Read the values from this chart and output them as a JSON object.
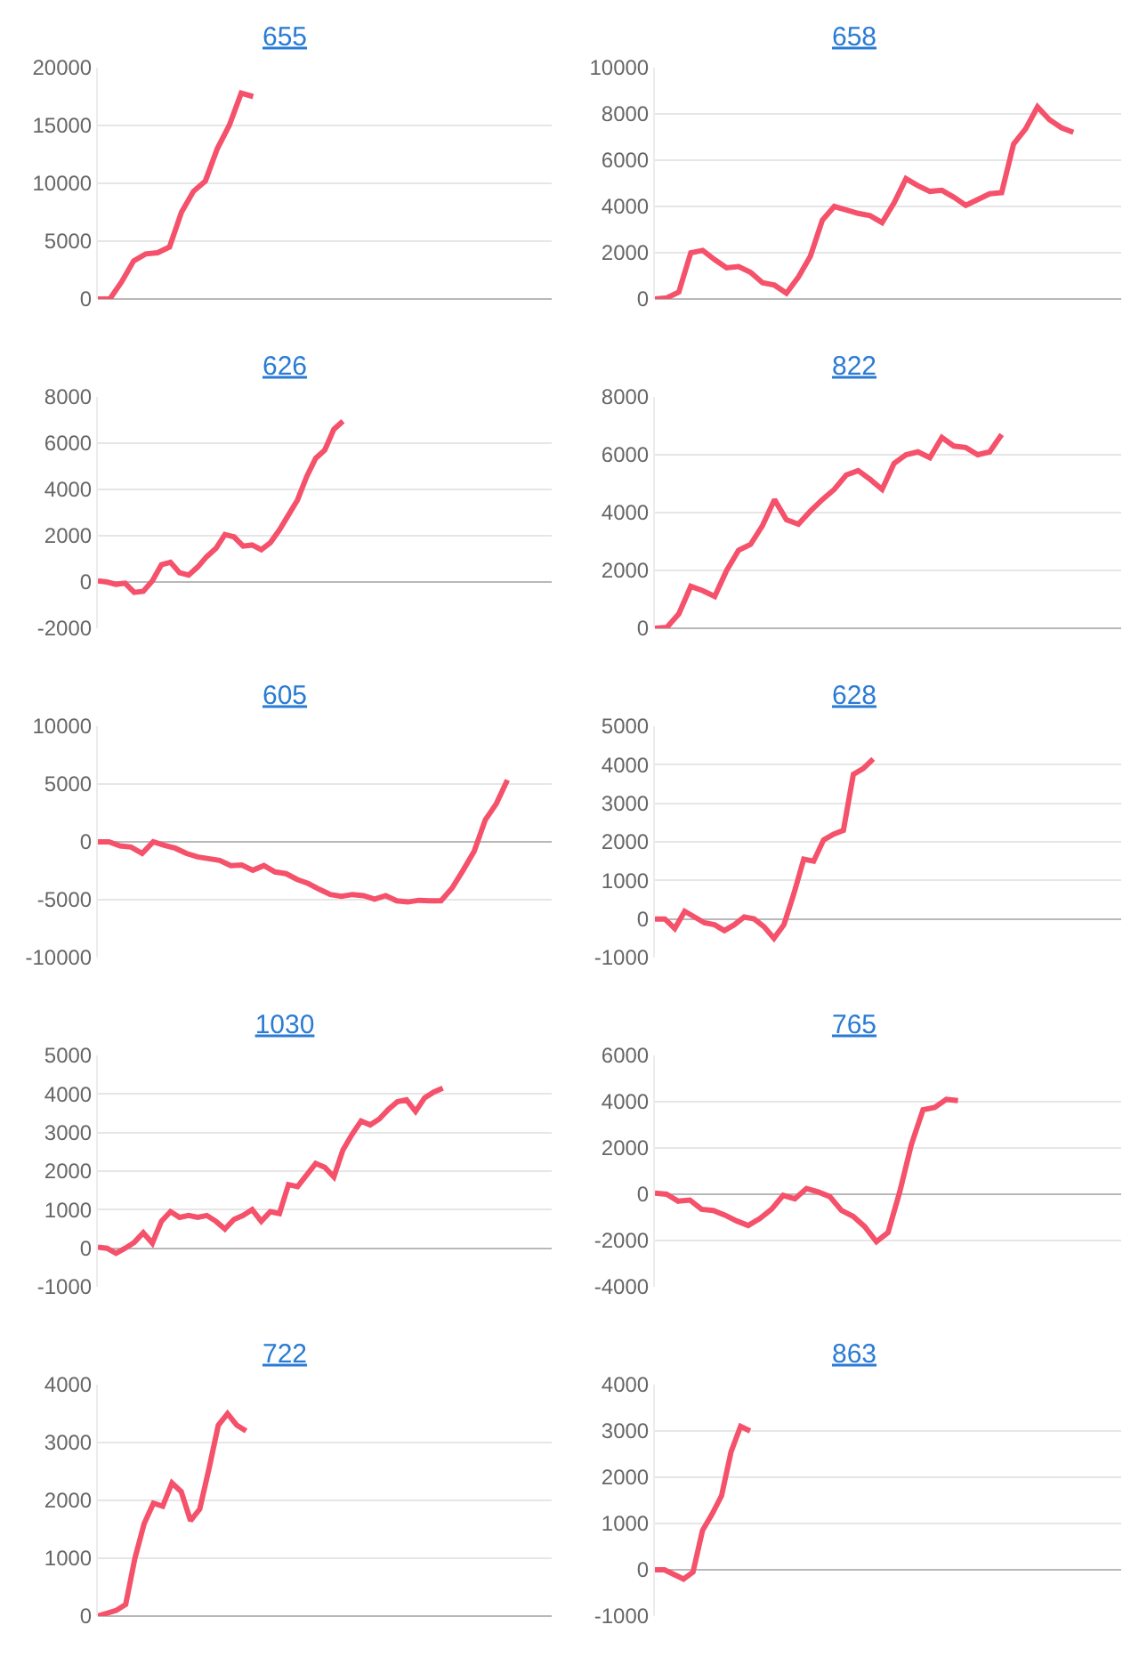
{
  "chart_data": [
    {
      "type": "line",
      "title": "655",
      "categories": [
        null,
        null,
        null,
        null,
        null,
        null,
        null,
        null,
        null,
        null,
        null,
        null,
        null,
        null,
        null,
        null,
        null,
        null,
        null,
        null,
        null,
        null,
        null,
        null,
        null,
        null,
        null,
        null,
        null,
        null,
        null,
        null,
        null,
        null,
        null,
        null,
        null,
        null,
        null
      ],
      "ylim": [
        0,
        20000
      ],
      "yticks": [
        0,
        5000,
        10000,
        15000,
        20000
      ],
      "grid": "y",
      "tick_labels": "y",
      "series": [
        {
          "color": "#f5516b",
          "values": [
            0,
            0,
            1500,
            3300,
            3900,
            4000,
            4500,
            7500,
            9300,
            10200,
            13000,
            15000,
            17800,
            17500,
            null,
            null,
            null,
            null,
            null,
            null,
            null,
            null,
            null,
            null,
            null,
            null,
            null,
            null,
            null,
            null,
            null,
            null,
            null,
            null,
            null,
            null,
            null,
            null,
            null
          ]
        }
      ]
    },
    {
      "type": "line",
      "title": "658",
      "categories": [
        null,
        null,
        null,
        null,
        null,
        null,
        null,
        null,
        null,
        null,
        null,
        null,
        null,
        null,
        null,
        null,
        null,
        null,
        null,
        null,
        null,
        null,
        null,
        null,
        null,
        null,
        null,
        null,
        null,
        null,
        null,
        null,
        null,
        null,
        null,
        null,
        null,
        null,
        null,
        null
      ],
      "ylim": [
        0,
        10000
      ],
      "yticks": [
        0,
        2000,
        4000,
        6000,
        8000,
        10000
      ],
      "grid": "y",
      "tick_labels": "y",
      "series": [
        {
          "color": "#f5516b",
          "values": [
            0,
            50,
            300,
            2000,
            2100,
            1700,
            1350,
            1400,
            1150,
            700,
            600,
            250,
            950,
            1850,
            3400,
            4000,
            3850,
            3700,
            3600,
            3300,
            4150,
            5200,
            4900,
            4650,
            4700,
            4400,
            4050,
            4300,
            4550,
            4600,
            6700,
            7350,
            8300,
            7750,
            7400,
            7200,
            null,
            null,
            null,
            null
          ]
        }
      ]
    },
    {
      "type": "line",
      "title": "626",
      "categories": [
        null,
        null,
        null,
        null,
        null,
        null,
        null,
        null,
        null,
        null,
        null,
        null,
        null,
        null,
        null,
        null,
        null,
        null,
        null,
        null,
        null,
        null,
        null,
        null,
        null,
        null,
        null,
        null,
        null,
        null,
        null,
        null,
        null,
        null,
        null,
        null,
        null,
        null,
        null,
        null,
        null,
        null,
        null,
        null,
        null,
        null,
        null,
        null,
        null,
        null,
        null
      ],
      "ylim": [
        -2000,
        8000
      ],
      "yticks": [
        -2000,
        0,
        2000,
        4000,
        6000,
        8000
      ],
      "grid": "y",
      "tick_labels": "y",
      "series": [
        {
          "color": "#f5516b",
          "values": [
            50,
            0,
            -100,
            -50,
            -450,
            -400,
            50,
            750,
            850,
            400,
            300,
            650,
            1100,
            1450,
            2050,
            1950,
            1550,
            1600,
            1400,
            1700,
            2250,
            2900,
            3550,
            4550,
            5350,
            5700,
            6600,
            6950,
            null,
            null,
            null,
            null,
            null,
            null,
            null,
            null,
            null,
            null,
            null,
            null,
            null,
            null,
            null,
            null,
            null,
            null,
            null,
            null,
            null,
            null,
            null
          ]
        }
      ]
    },
    {
      "type": "line",
      "title": "822",
      "categories": [
        null,
        null,
        null,
        null,
        null,
        null,
        null,
        null,
        null,
        null,
        null,
        null,
        null,
        null,
        null,
        null,
        null,
        null,
        null,
        null,
        null,
        null,
        null,
        null,
        null,
        null,
        null,
        null,
        null,
        null,
        null,
        null,
        null,
        null,
        null,
        null,
        null,
        null,
        null,
        null
      ],
      "ylim": [
        0,
        8000
      ],
      "yticks": [
        0,
        2000,
        4000,
        6000,
        8000
      ],
      "grid": "y",
      "tick_labels": "y",
      "series": [
        {
          "color": "#f5516b",
          "values": [
            0,
            30,
            500,
            1450,
            1300,
            1100,
            2000,
            2700,
            2900,
            3550,
            4450,
            3750,
            3600,
            4050,
            4450,
            4800,
            5300,
            5450,
            5150,
            4800,
            5700,
            6000,
            6100,
            5900,
            6600,
            6300,
            6250,
            6000,
            6100,
            6700,
            null,
            null,
            null,
            null,
            null,
            null,
            null,
            null,
            null,
            null
          ]
        }
      ]
    },
    {
      "type": "line",
      "title": "605",
      "categories": [
        null,
        null,
        null,
        null,
        null,
        null,
        null,
        null,
        null,
        null,
        null,
        null,
        null,
        null,
        null,
        null,
        null,
        null,
        null,
        null,
        null,
        null,
        null,
        null,
        null,
        null,
        null,
        null,
        null,
        null,
        null,
        null,
        null,
        null,
        null,
        null,
        null,
        null,
        null,
        null,
        null,
        null
      ],
      "ylim": [
        -10000,
        10000
      ],
      "yticks": [
        -10000,
        -5000,
        0,
        5000,
        10000
      ],
      "grid": "y",
      "tick_labels": "y",
      "series": [
        {
          "color": "#f5516b",
          "values": [
            0,
            0,
            -350,
            -450,
            -1000,
            0,
            -300,
            -550,
            -1000,
            -1300,
            -1450,
            -1600,
            -2050,
            -2000,
            -2450,
            -2050,
            -2600,
            -2750,
            -3250,
            -3600,
            -4100,
            -4550,
            -4700,
            -4550,
            -4650,
            -4950,
            -4650,
            -5100,
            -5200,
            -5050,
            -5100,
            -5100,
            -4000,
            -2450,
            -800,
            1900,
            3300,
            5350,
            null,
            null,
            null,
            null
          ]
        }
      ]
    },
    {
      "type": "line",
      "title": "628",
      "categories": [
        null,
        null,
        null,
        null,
        null,
        null,
        null,
        null,
        null,
        null,
        null,
        null,
        null,
        null,
        null,
        null,
        null,
        null,
        null,
        null,
        null,
        null,
        null,
        null,
        null,
        null,
        null,
        null,
        null,
        null,
        null,
        null,
        null,
        null,
        null,
        null,
        null,
        null,
        null,
        null,
        null,
        null,
        null,
        null,
        null,
        null,
        null,
        null
      ],
      "ylim": [
        -1000,
        5000
      ],
      "yticks": [
        -1000,
        0,
        1000,
        2000,
        3000,
        4000,
        5000
      ],
      "grid": "y",
      "tick_labels": "y",
      "series": [
        {
          "color": "#f5516b",
          "values": [
            0,
            0,
            -250,
            200,
            50,
            -100,
            -150,
            -300,
            -150,
            50,
            0,
            -200,
            -500,
            -150,
            650,
            1550,
            1500,
            2050,
            2200,
            2300,
            3750,
            3900,
            4150,
            null,
            null,
            null,
            null,
            null,
            null,
            null,
            null,
            null,
            null,
            null,
            null,
            null,
            null,
            null,
            null,
            null,
            null,
            null,
            null,
            null,
            null,
            null,
            null,
            null
          ]
        }
      ]
    },
    {
      "type": "line",
      "title": "1030",
      "categories": [
        null,
        null,
        null,
        null,
        null,
        null,
        null,
        null,
        null,
        null,
        null,
        null,
        null,
        null,
        null,
        null,
        null,
        null,
        null,
        null,
        null,
        null,
        null,
        null,
        null,
        null,
        null,
        null,
        null,
        null,
        null,
        null,
        null,
        null,
        null,
        null,
        null,
        null,
        null,
        null,
        null,
        null,
        null,
        null,
        null,
        null,
        null,
        null,
        null,
        null,
        null
      ],
      "ylim": [
        -1000,
        5000
      ],
      "yticks": [
        -1000,
        0,
        1000,
        2000,
        3000,
        4000,
        5000
      ],
      "grid": "y",
      "tick_labels": "y",
      "series": [
        {
          "color": "#f5516b",
          "values": [
            30,
            0,
            -130,
            0,
            150,
            400,
            130,
            700,
            950,
            800,
            850,
            800,
            850,
            700,
            500,
            750,
            850,
            1000,
            700,
            950,
            900,
            1650,
            1600,
            1900,
            2200,
            2100,
            1850,
            2550,
            2950,
            3300,
            3200,
            3350,
            3600,
            3800,
            3850,
            3550,
            3900,
            4050,
            4150,
            null,
            null,
            null,
            null,
            null,
            null,
            null,
            null,
            null,
            null,
            null,
            null
          ]
        }
      ]
    },
    {
      "type": "line",
      "title": "765",
      "categories": [
        null,
        null,
        null,
        null,
        null,
        null,
        null,
        null,
        null,
        null,
        null,
        null,
        null,
        null,
        null,
        null,
        null,
        null,
        null,
        null,
        null,
        null,
        null,
        null,
        null,
        null,
        null,
        null,
        null,
        null,
        null,
        null,
        null,
        null,
        null,
        null,
        null,
        null,
        null,
        null,
        null
      ],
      "ylim": [
        -4000,
        6000
      ],
      "yticks": [
        -4000,
        -2000,
        0,
        2000,
        4000,
        6000
      ],
      "grid": "y",
      "tick_labels": "y",
      "series": [
        {
          "color": "#f5516b",
          "values": [
            50,
            0,
            -300,
            -250,
            -650,
            -700,
            -900,
            -1150,
            -1350,
            -1050,
            -650,
            -50,
            -200,
            250,
            100,
            -100,
            -700,
            -950,
            -1400,
            -2050,
            -1650,
            100,
            2150,
            3650,
            3750,
            4100,
            4050,
            null,
            null,
            null,
            null,
            null,
            null,
            null,
            null,
            null,
            null,
            null,
            null,
            null,
            null
          ]
        }
      ]
    },
    {
      "type": "line",
      "title": "722",
      "categories": [
        null,
        null,
        null,
        null,
        null,
        null,
        null,
        null,
        null,
        null,
        null,
        null,
        null,
        null,
        null,
        null,
        null,
        null,
        null,
        null,
        null,
        null,
        null,
        null,
        null,
        null,
        null,
        null,
        null,
        null,
        null,
        null,
        null,
        null,
        null,
        null,
        null,
        null,
        null,
        null,
        null,
        null,
        null,
        null,
        null,
        null,
        null,
        null,
        null,
        null
      ],
      "ylim": [
        0,
        4000
      ],
      "yticks": [
        0,
        1000,
        2000,
        3000,
        4000
      ],
      "grid": "y",
      "tick_labels": "y",
      "series": [
        {
          "color": "#f5516b",
          "values": [
            0,
            50,
            100,
            200,
            1000,
            1600,
            1950,
            1900,
            2300,
            2150,
            1650,
            1850,
            2550,
            3300,
            3500,
            3300,
            3200,
            null,
            null,
            null,
            null,
            null,
            null,
            null,
            null,
            null,
            null,
            null,
            null,
            null,
            null,
            null,
            null,
            null,
            null,
            null,
            null,
            null,
            null,
            null,
            null,
            null,
            null,
            null,
            null,
            null,
            null,
            null,
            null,
            null
          ]
        }
      ]
    },
    {
      "type": "line",
      "title": "863",
      "categories": [
        null,
        null,
        null,
        null,
        null,
        null,
        null,
        null,
        null,
        null,
        null,
        null,
        null,
        null,
        null,
        null,
        null,
        null,
        null,
        null,
        null,
        null,
        null,
        null,
        null,
        null,
        null,
        null,
        null,
        null,
        null,
        null,
        null,
        null,
        null,
        null,
        null,
        null,
        null,
        null,
        null,
        null,
        null,
        null,
        null,
        null,
        null,
        null,
        null,
        null
      ],
      "ylim": [
        -1000,
        4000
      ],
      "yticks": [
        -1000,
        0,
        1000,
        2000,
        3000,
        4000
      ],
      "grid": "y",
      "tick_labels": "y",
      "series": [
        {
          "color": "#f5516b",
          "values": [
            0,
            0,
            -100,
            -200,
            -50,
            850,
            1200,
            1600,
            2550,
            3100,
            3000,
            null,
            null,
            null,
            null,
            null,
            null,
            null,
            null,
            null,
            null,
            null,
            null,
            null,
            null,
            null,
            null,
            null,
            null,
            null,
            null,
            null,
            null,
            null,
            null,
            null,
            null,
            null,
            null,
            null,
            null,
            null,
            null,
            null,
            null,
            null,
            null,
            null,
            null,
            null
          ]
        }
      ]
    }
  ]
}
